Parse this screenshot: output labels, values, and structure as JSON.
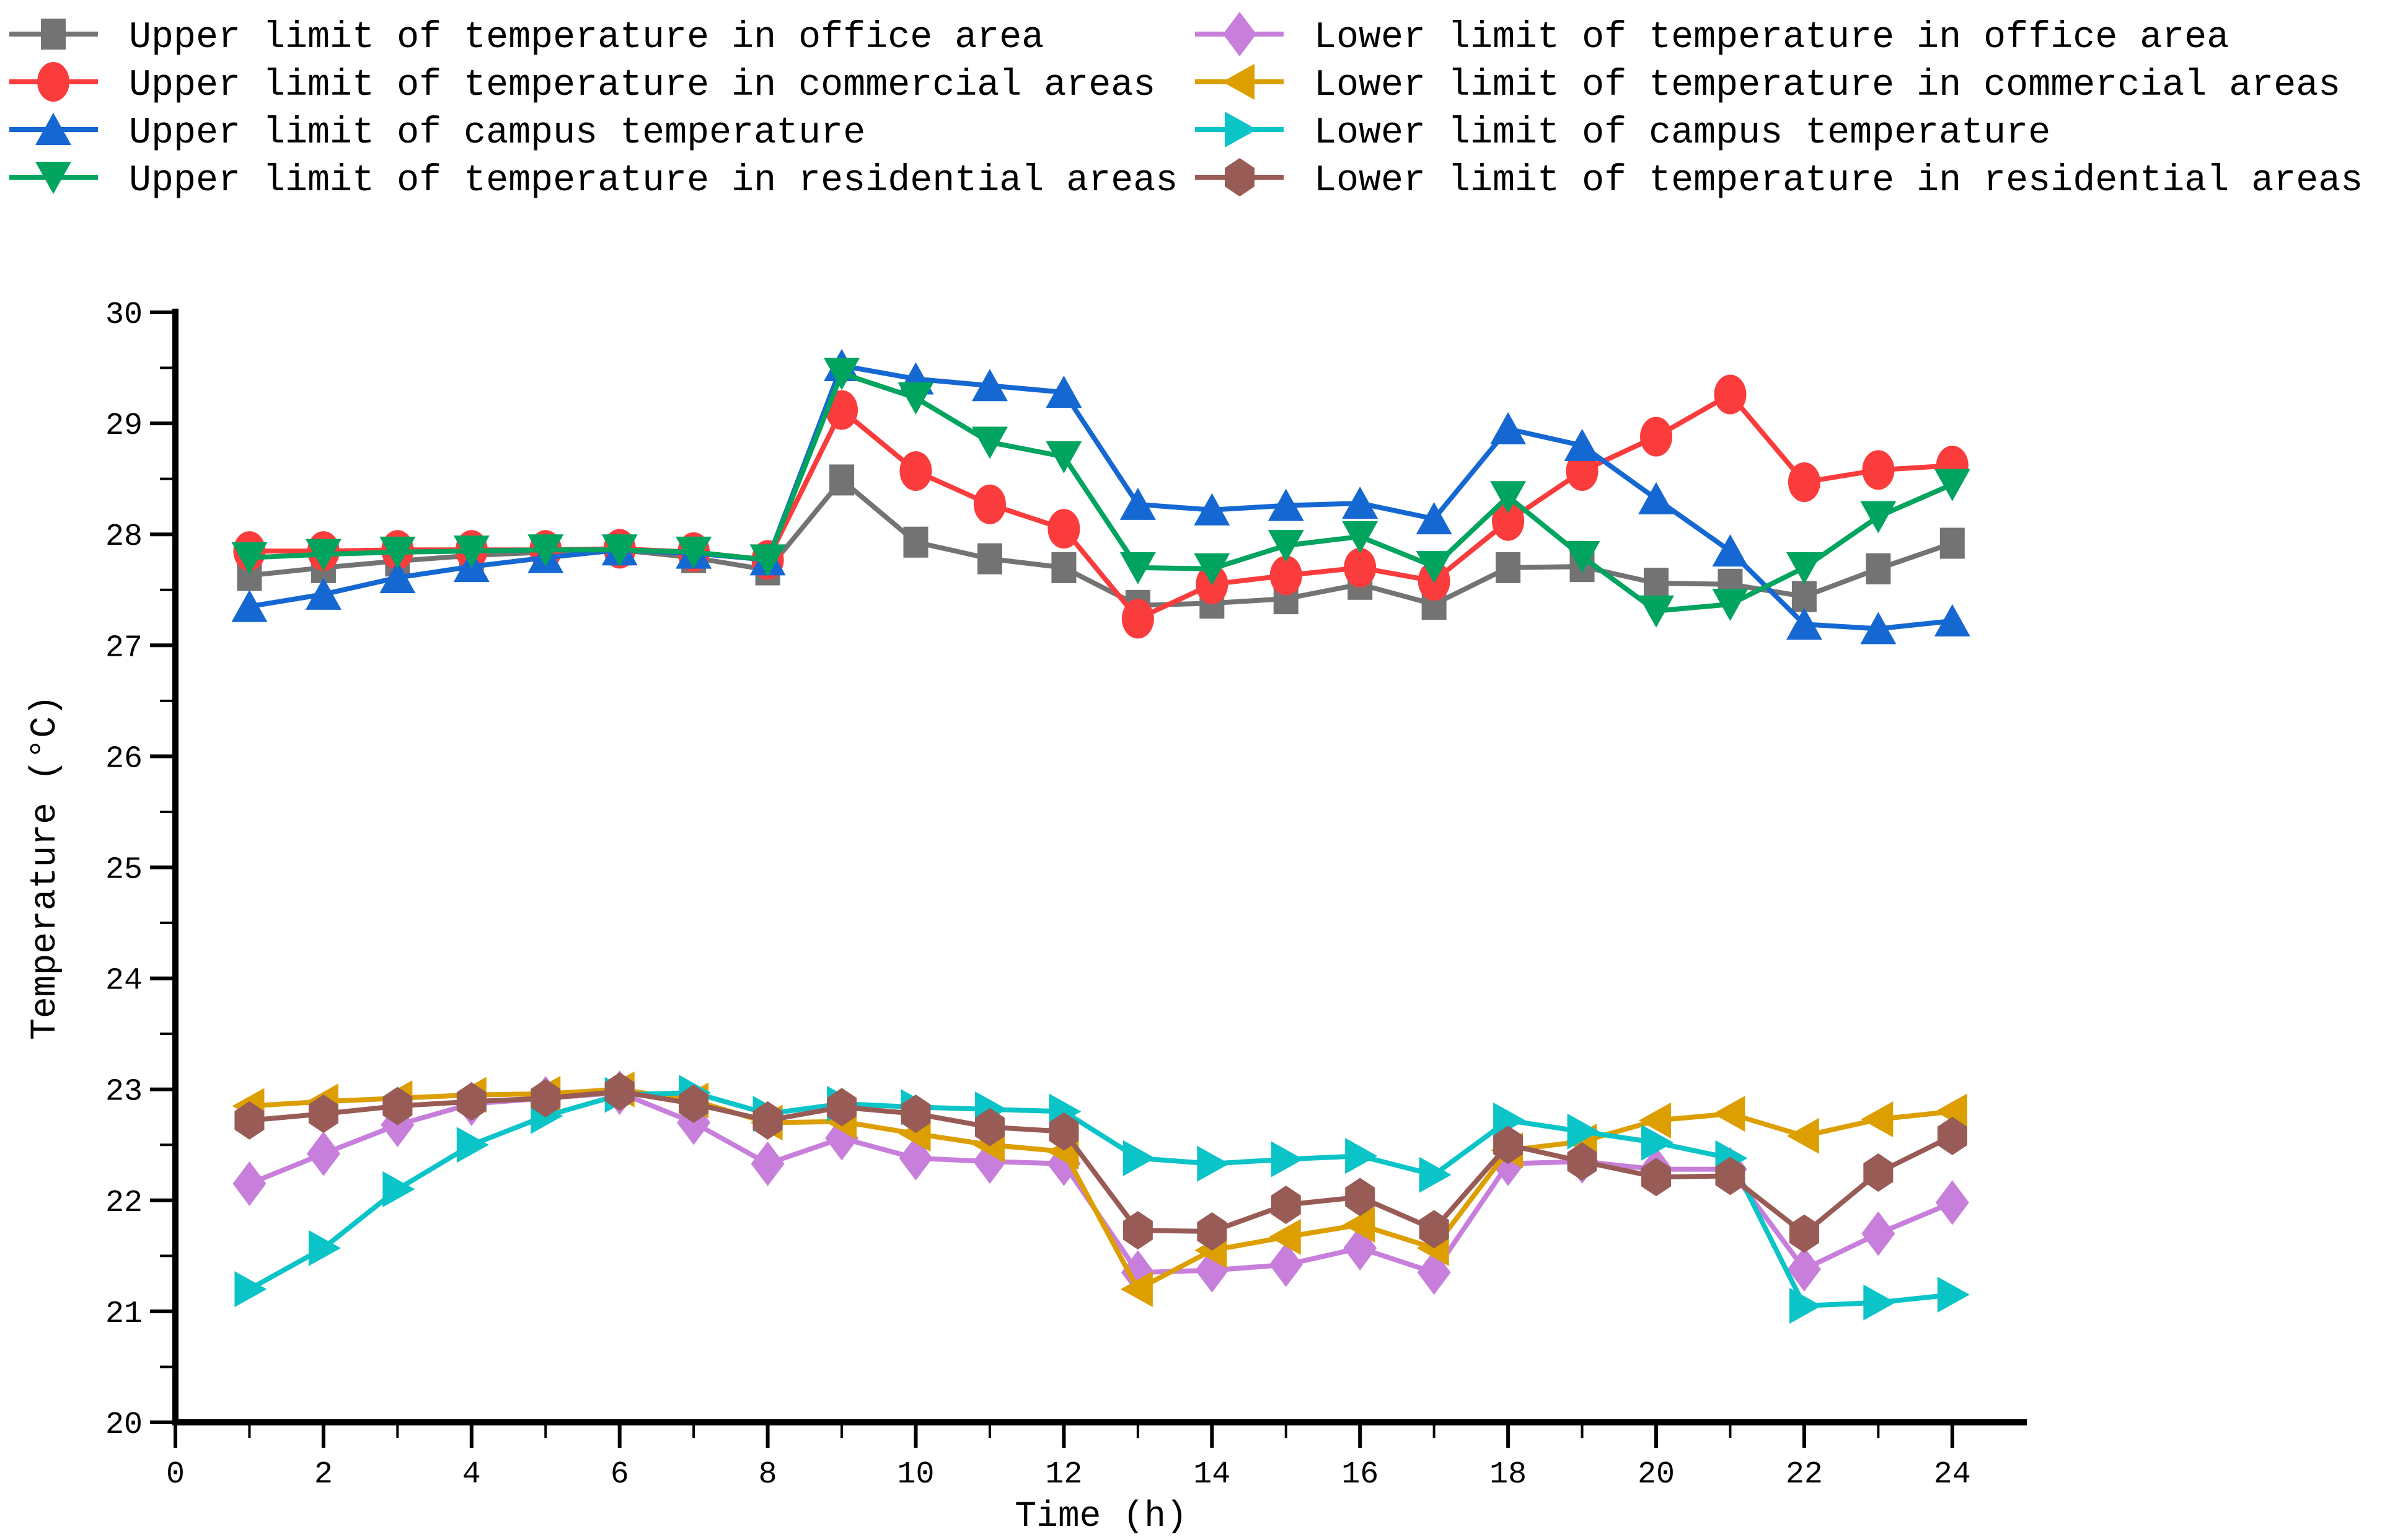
{
  "chart_data": {
    "type": "line",
    "title": "",
    "xlabel": "Time (h)",
    "ylabel": "Temperature (°C)",
    "xlim": [
      0,
      25
    ],
    "ylim": [
      20,
      30
    ],
    "grid": false,
    "legend_position": "top-two-columns",
    "xticks": [
      0,
      2,
      4,
      6,
      8,
      10,
      12,
      14,
      16,
      18,
      20,
      22,
      24
    ],
    "xminorticks": [
      1,
      3,
      5,
      7,
      9,
      11,
      13,
      15,
      17,
      19,
      21,
      23
    ],
    "yticks": [
      20,
      21,
      22,
      23,
      24,
      25,
      26,
      27,
      28,
      29,
      30
    ],
    "yminorticks": [
      20.5,
      21.5,
      22.5,
      23.5,
      24.5,
      25.5,
      26.5,
      27.5,
      28.5,
      29.5
    ],
    "x": [
      1,
      2,
      3,
      4,
      5,
      6,
      7,
      8,
      9,
      10,
      11,
      12,
      13,
      14,
      15,
      16,
      17,
      18,
      19,
      20,
      21,
      22,
      23,
      24
    ],
    "series": [
      {
        "name": "Upper limit of temperature in office area",
        "marker": "square",
        "color": "#737373",
        "values": [
          27.63,
          27.7,
          27.76,
          27.81,
          27.84,
          27.86,
          27.79,
          27.68,
          28.49,
          27.93,
          27.78,
          27.7,
          27.36,
          27.38,
          27.42,
          27.55,
          27.37,
          27.7,
          27.71,
          27.56,
          27.55,
          27.44,
          27.69,
          27.92
        ]
      },
      {
        "name": "Upper limit of temperature in commercial areas",
        "marker": "circle",
        "color": "#FA3C3C",
        "values": [
          27.85,
          27.85,
          27.86,
          27.86,
          27.86,
          27.87,
          27.84,
          27.77,
          29.12,
          28.57,
          28.27,
          28.05,
          27.24,
          27.55,
          27.63,
          27.7,
          27.58,
          28.12,
          28.57,
          28.88,
          29.26,
          28.47,
          28.58,
          28.62
        ]
      },
      {
        "name": "Upper limit of campus temperature",
        "marker": "triangle-up",
        "color": "#1568D2",
        "values": [
          27.35,
          27.46,
          27.61,
          27.71,
          27.79,
          27.86,
          27.83,
          27.77,
          29.52,
          29.4,
          29.34,
          29.28,
          28.27,
          28.22,
          28.26,
          28.28,
          28.14,
          28.95,
          28.8,
          28.32,
          27.85,
          27.19,
          27.15,
          27.22
        ]
      },
      {
        "name": "Upper limit of temperature in residential areas",
        "marker": "triangle-down",
        "color": "#00A45E",
        "values": [
          27.79,
          27.82,
          27.84,
          27.85,
          27.86,
          27.86,
          27.84,
          27.77,
          29.45,
          29.23,
          28.83,
          28.7,
          27.7,
          27.69,
          27.9,
          27.98,
          27.71,
          28.34,
          27.8,
          27.31,
          27.37,
          27.7,
          28.16,
          28.45
        ]
      },
      {
        "name": "Lower limit of temperature in office area",
        "marker": "diamond",
        "color": "#C77FDB",
        "values": [
          22.15,
          22.42,
          22.68,
          22.87,
          22.92,
          22.97,
          22.7,
          22.33,
          22.56,
          22.38,
          22.35,
          22.33,
          21.35,
          21.37,
          21.42,
          21.57,
          21.35,
          22.33,
          22.35,
          22.28,
          22.28,
          21.38,
          21.7,
          21.98
        ]
      },
      {
        "name": "Lower limit of temperature in commercial areas",
        "marker": "triangle-left",
        "color": "#DD9F00",
        "values": [
          22.85,
          22.89,
          22.92,
          22.95,
          22.96,
          23.0,
          22.9,
          22.7,
          22.71,
          22.6,
          22.5,
          22.44,
          21.2,
          21.55,
          21.67,
          21.78,
          21.57,
          22.45,
          22.53,
          22.72,
          22.78,
          22.58,
          22.73,
          22.8
        ]
      },
      {
        "name": "Lower limit of campus temperature",
        "marker": "triangle-right",
        "color": "#0BC4C8",
        "values": [
          21.2,
          21.57,
          22.1,
          22.5,
          22.76,
          22.95,
          22.97,
          22.78,
          22.87,
          22.84,
          22.82,
          22.8,
          22.38,
          22.33,
          22.37,
          22.4,
          22.23,
          22.72,
          22.62,
          22.52,
          22.38,
          21.05,
          21.08,
          21.15
        ]
      },
      {
        "name": "Lower limit of temperature in residential areas",
        "marker": "hexagon",
        "color": "#985B55",
        "values": [
          22.72,
          22.78,
          22.85,
          22.89,
          22.92,
          22.98,
          22.87,
          22.72,
          22.84,
          22.78,
          22.66,
          22.62,
          21.73,
          21.72,
          21.96,
          22.03,
          21.74,
          22.5,
          22.35,
          22.21,
          22.22,
          21.7,
          22.25,
          22.58
        ]
      }
    ]
  }
}
